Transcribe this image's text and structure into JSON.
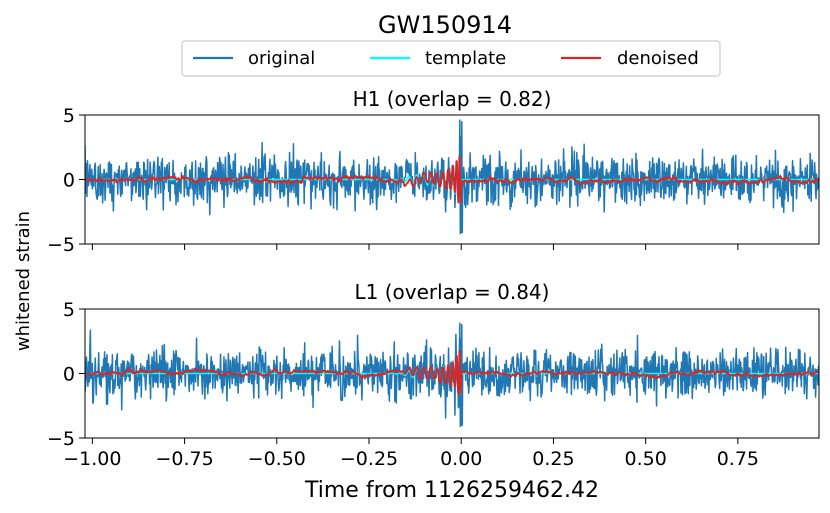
{
  "chart_data": {
    "type": "line",
    "title": "GW150914",
    "xlabel": "Time from 1126259462.42",
    "ylabel": "whitened strain",
    "xlim": [
      -1.02,
      0.97
    ],
    "xticks": [
      -1.0,
      -0.75,
      -0.5,
      -0.25,
      0.0,
      0.25,
      0.5,
      0.75
    ],
    "xtick_labels": [
      "−1.00",
      "−0.75",
      "−0.50",
      "−0.25",
      "0.00",
      "0.25",
      "0.50",
      "0.75"
    ],
    "legend": {
      "placement": "top-center",
      "entries": [
        {
          "label": "original",
          "color": "#1f77b4"
        },
        {
          "label": "template",
          "color": "#00ffff"
        },
        {
          "label": "denoised",
          "color": "#d62728"
        }
      ]
    },
    "panels": [
      {
        "name": "H1",
        "title": "H1 (overlap = 0.82)",
        "ylim": [
          -5,
          5
        ],
        "yticks": [
          -5,
          0,
          5
        ],
        "ytick_labels": [
          "−5",
          "0",
          "5"
        ],
        "series": [
          {
            "name": "original",
            "color": "#1f77b4",
            "noise_std": 0.95,
            "range": [
              -4.2,
              4.6
            ],
            "peak_time": 0.0
          },
          {
            "name": "template",
            "color": "#00ffff",
            "chirp_peak_amplitude": 2.2,
            "merger_time": 0.0
          },
          {
            "name": "denoised",
            "color": "#d62728",
            "residual_amplitude": 0.35,
            "chirp_peak_amplitude": 2.2,
            "merger_time": 0.0
          }
        ]
      },
      {
        "name": "L1",
        "title": "L1 (overlap = 0.84)",
        "ylim": [
          -5,
          5
        ],
        "yticks": [
          -5,
          0,
          5
        ],
        "ytick_labels": [
          "−5",
          "0",
          "5"
        ],
        "series": [
          {
            "name": "original",
            "color": "#1f77b4",
            "noise_std": 0.95,
            "range": [
              -4.1,
              3.9
            ],
            "peak_time": 0.0
          },
          {
            "name": "template",
            "color": "#00ffff",
            "chirp_peak_amplitude": 2.1,
            "merger_time": 0.0
          },
          {
            "name": "denoised",
            "color": "#d62728",
            "residual_amplitude": 0.3,
            "chirp_peak_amplitude": 2.1,
            "merger_time": 0.0
          }
        ]
      }
    ]
  }
}
